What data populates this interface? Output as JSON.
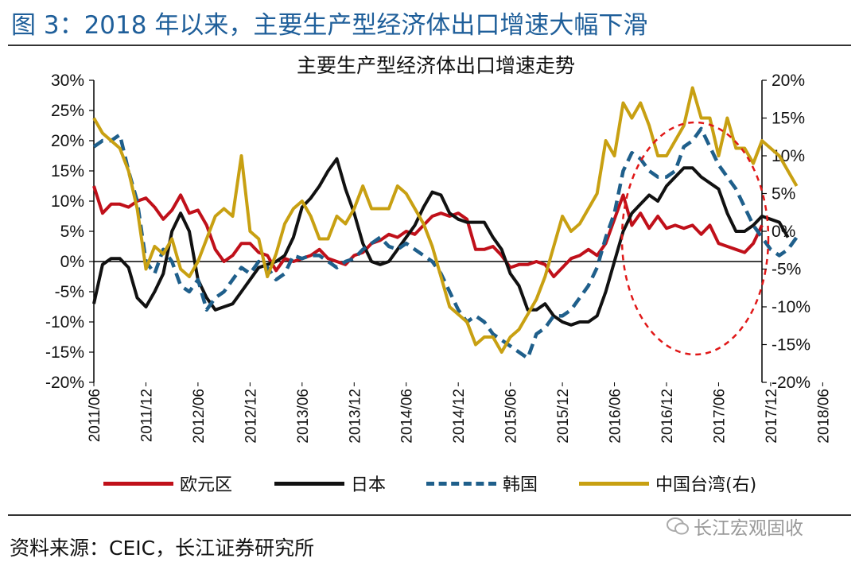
{
  "figure_title": "图 3：2018 年以来，主要生产型经济体出口增速大幅下滑",
  "source": "资料来源：CEIC，长江证券研究所",
  "watermark": "长江宏观固收",
  "colors": {
    "title": "#1f5f9a",
    "eurozone": "#c0101a",
    "japan": "#111111",
    "korea": "#1f5f8b",
    "taiwan": "#c8a012",
    "highlight": "#e01818"
  },
  "chart_data": {
    "type": "line",
    "title": "主要生产型经济体出口增速走势",
    "xlabel": "",
    "ylabel": "",
    "x_tick_labels": [
      "2011/06",
      "2011/12",
      "2012/06",
      "2012/12",
      "2013/06",
      "2013/12",
      "2014/06",
      "2014/12",
      "2015/06",
      "2015/12",
      "2016/06",
      "2016/12",
      "2017/06",
      "2017/12",
      "2018/06"
    ],
    "y_left_ticks": [
      "30%",
      "25%",
      "20%",
      "15%",
      "10%",
      "5%",
      "0%",
      "-5%",
      "-10%",
      "-15%",
      "-20%"
    ],
    "y_right_ticks": [
      "20%",
      "15%",
      "10%",
      "5%",
      "0%",
      "-5%",
      "-10%",
      "-15%",
      "-20%"
    ],
    "ylim_left": [
      -20,
      30
    ],
    "ylim_right": [
      -20,
      20
    ],
    "x_start": "2011/06",
    "legend_position": "bottom",
    "series": [
      {
        "name": "欧元区",
        "axis": "left",
        "style": "solid",
        "values": [
          12.5,
          8,
          9.5,
          9.5,
          9,
          10,
          10.5,
          9,
          7,
          8.5,
          11,
          8,
          8.5,
          6,
          2,
          0,
          1,
          3,
          3,
          1.5,
          1,
          -1.5,
          0.5,
          0,
          0.5,
          1,
          2,
          0.5,
          0,
          -0.5,
          1,
          1.5,
          3,
          3.5,
          4.5,
          4,
          5,
          4.5,
          6,
          7.5,
          8,
          7.5,
          8,
          7,
          2,
          2,
          2.5,
          1,
          -1,
          -0.5,
          -0.5,
          0,
          -0.5,
          -2.5,
          -1,
          0.5,
          1,
          2,
          1,
          3,
          7,
          11,
          6,
          8,
          5.5,
          7.5,
          5.5,
          6,
          5.5,
          6,
          4.5,
          6,
          3,
          2.5,
          2,
          1.5,
          3,
          6
        ]
      },
      {
        "name": "日本",
        "axis": "left",
        "style": "solid",
        "values": [
          -7,
          -0.5,
          0.5,
          0.5,
          -1,
          -6,
          -7.5,
          -5,
          -2,
          5,
          8,
          5,
          -3,
          -6,
          -8,
          -7.5,
          -7,
          -5,
          -3,
          -1,
          -0.5,
          0,
          1,
          4,
          9,
          10.5,
          12.5,
          15,
          17,
          12,
          8,
          3,
          0,
          -0.5,
          0,
          2,
          4,
          6,
          9,
          11.5,
          11,
          8,
          7,
          6.5,
          6.5,
          6.5,
          4,
          2,
          -2,
          -4,
          -8,
          -8,
          -7,
          -9,
          -10,
          -10.5,
          -10,
          -10,
          -9,
          -5,
          0,
          5,
          8,
          9.5,
          11,
          10,
          12.5,
          14,
          15.5,
          15.5,
          14,
          13,
          12,
          8,
          5,
          5,
          6,
          7.5,
          7,
          6.5,
          4
        ]
      },
      {
        "name": "韩国",
        "axis": "left",
        "style": "dashed",
        "values": [
          19,
          20,
          20,
          21,
          15,
          10,
          0,
          -2,
          2,
          0,
          -4,
          -5,
          -3,
          -8,
          -6,
          -5,
          -3,
          -1,
          -2,
          0,
          -1,
          -3,
          -2,
          1,
          0.5,
          1,
          1,
          0,
          -1,
          0,
          0.5,
          2,
          3,
          4,
          2.5,
          2,
          3,
          2,
          1,
          0,
          -2,
          -5,
          -8,
          -10,
          -9,
          -10,
          -12,
          -13,
          -14,
          -15,
          -16,
          -12,
          -11,
          -9,
          -9,
          -8,
          -6,
          -4,
          -1,
          4,
          8,
          15,
          18,
          17,
          15,
          14,
          14,
          15,
          19,
          20,
          22,
          19,
          16,
          14,
          12,
          9,
          6,
          4,
          2,
          1,
          2,
          4
        ]
      },
      {
        "name": "中国台湾(右)",
        "axis": "right",
        "style": "solid",
        "values": [
          15,
          13,
          12,
          11,
          8,
          3,
          -5,
          -2,
          -3,
          -1,
          -5,
          -6,
          -4,
          -1,
          2,
          3,
          2,
          10,
          0,
          -1,
          -6,
          -3,
          1,
          3,
          4,
          2,
          -1,
          -1,
          2,
          1,
          3,
          6,
          3,
          3,
          3,
          6,
          5,
          3,
          1,
          -2,
          -6,
          -10,
          -11,
          -12,
          -15,
          -14,
          -14,
          -16,
          -14,
          -13,
          -11,
          -9,
          -6,
          -2,
          2,
          0,
          1,
          3,
          5,
          12,
          10,
          17,
          15,
          17,
          14,
          10,
          10,
          12,
          14,
          19,
          15,
          15,
          10,
          15,
          11,
          11,
          9,
          12,
          11,
          10,
          8,
          6
        ]
      }
    ]
  }
}
